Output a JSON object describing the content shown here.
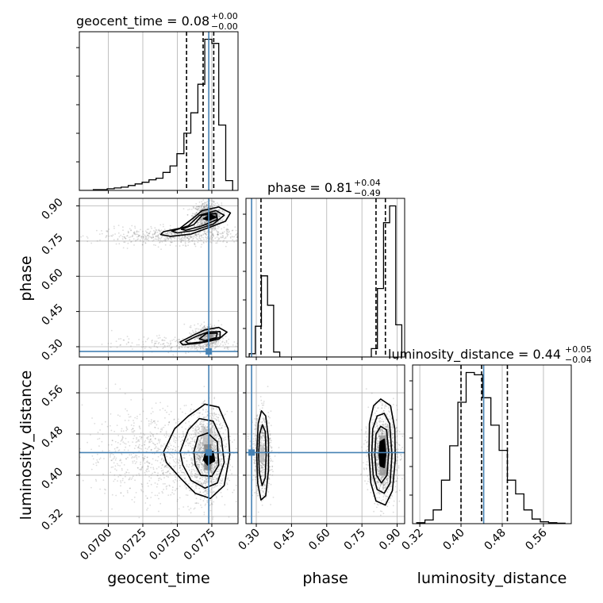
{
  "colors": {
    "truth": "#4682b4",
    "contour": "#000000",
    "grid": "#b0b0b0",
    "scatter": "#808080"
  },
  "chart_data": {
    "type": "corner",
    "parameters": [
      "geocent_time",
      "phase",
      "luminosity_distance"
    ],
    "axis_labels": [
      "geocent_time",
      "phase",
      "luminosity_distance"
    ],
    "truths": [
      0.07728,
      0.28,
      0.444
    ],
    "titles": [
      {
        "param": "geocent_time",
        "text": "geocent_time = 0.08",
        "sup": "+0.00",
        "sub": "−0.00"
      },
      {
        "param": "phase",
        "text": "phase = 0.81",
        "sup": "+0.04",
        "sub": "−0.49"
      },
      {
        "param": "luminosity_distance",
        "text": "luminosity_distance = 0.44",
        "sup": "+0.05",
        "sub": "−0.04"
      }
    ],
    "ranges": {
      "geocent_time": [
        0.0679,
        0.0794
      ],
      "phase": [
        0.256,
        0.932
      ],
      "luminosity_distance": [
        0.306,
        0.614
      ]
    },
    "ticks": {
      "geocent_time": [
        "0.0700",
        "0.0725",
        "0.0750",
        "0.0775"
      ],
      "phase": [
        "0.30",
        "0.45",
        "0.60",
        "0.75",
        "0.90"
      ],
      "luminosity_distance": [
        "0.32",
        "0.40",
        "0.48",
        "0.56"
      ]
    },
    "quantiles": {
      "geocent_time": [
        0.07567,
        0.07687,
        0.07764
      ],
      "phase": [
        0.32,
        0.81,
        0.85
      ],
      "luminosity_distance": [
        0.4,
        0.44,
        0.49
      ]
    },
    "histograms": {
      "geocent_time": {
        "edges": [
          0.0679,
          0.06841,
          0.06891,
          0.06942,
          0.06992,
          0.07043,
          0.07093,
          0.07144,
          0.07194,
          0.07245,
          0.07295,
          0.07346,
          0.07396,
          0.07447,
          0.07497,
          0.07548,
          0.07598,
          0.07649,
          0.07699,
          0.0775,
          0.078,
          0.07851,
          0.07901
        ],
        "counts": [
          0,
          0,
          1,
          1,
          2,
          3,
          4,
          6,
          8,
          10,
          13,
          15,
          22,
          30,
          45,
          70,
          95,
          130,
          185,
          180,
          80,
          12
        ]
      },
      "phase": {
        "edges": [
          0.27,
          0.296,
          0.322,
          0.348,
          0.374,
          0.4,
          0.426,
          0.452,
          0.478,
          0.504,
          0.53,
          0.556,
          0.582,
          0.608,
          0.634,
          0.66,
          0.686,
          0.712,
          0.738,
          0.764,
          0.79,
          0.816,
          0.842,
          0.868,
          0.894,
          0.92
        ],
        "counts": [
          12,
          110,
          290,
          185,
          18,
          0,
          0,
          0,
          0,
          0,
          0,
          0,
          0,
          0,
          0,
          0,
          0,
          0,
          0,
          0,
          30,
          245,
          480,
          540,
          115
        ]
      },
      "luminosity_distance": {
        "edges": [
          0.314,
          0.33,
          0.346,
          0.362,
          0.378,
          0.394,
          0.41,
          0.426,
          0.442,
          0.458,
          0.474,
          0.49,
          0.506,
          0.522,
          0.538,
          0.554,
          0.57,
          0.586,
          0.602
        ],
        "counts": [
          2,
          8,
          30,
          95,
          170,
          265,
          330,
          325,
          275,
          215,
          160,
          95,
          65,
          30,
          10,
          4,
          2,
          1
        ]
      }
    },
    "clusters": [
      {
        "x": "geocent_time",
        "y": "phase",
        "n": 900,
        "mx": 0.0772,
        "sx": 0.0005,
        "my": 0.855,
        "sy": 0.028
      },
      {
        "x": "geocent_time",
        "y": "phase",
        "n": 650,
        "mx": 0.0752,
        "sx": 0.003,
        "my": 0.772,
        "sy": 0.018
      },
      {
        "x": "geocent_time",
        "y": "phase",
        "n": 500,
        "mx": 0.0772,
        "sx": 0.0005,
        "my": 0.345,
        "sy": 0.024
      },
      {
        "x": "geocent_time",
        "y": "phase",
        "n": 250,
        "mx": 0.0752,
        "sx": 0.0025,
        "my": 0.312,
        "sy": 0.016
      },
      {
        "x": "geocent_time",
        "y": "luminosity_distance",
        "n": 1300,
        "mx": 0.0772,
        "sx": 0.0006,
        "my": 0.44,
        "sy": 0.04
      },
      {
        "x": "geocent_time",
        "y": "luminosity_distance",
        "n": 900,
        "mx": 0.074,
        "sx": 0.0028,
        "my": 0.44,
        "sy": 0.045
      },
      {
        "x": "phase",
        "y": "luminosity_distance",
        "n": 650,
        "mx": 0.325,
        "sx": 0.02,
        "my": 0.44,
        "sy": 0.04
      },
      {
        "x": "phase",
        "y": "luminosity_distance",
        "n": 1400,
        "mx": 0.84,
        "sx": 0.03,
        "my": 0.44,
        "sy": 0.04
      }
    ],
    "contours": [
      {
        "x": "geocent_time",
        "y": "phase",
        "level": "outer",
        "points": [
          [
            0.074,
            0.79
          ],
          [
            0.0752,
            0.805
          ],
          [
            0.0762,
            0.85
          ],
          [
            0.0768,
            0.88
          ],
          [
            0.078,
            0.895
          ],
          [
            0.07885,
            0.87
          ],
          [
            0.0785,
            0.835
          ],
          [
            0.0774,
            0.81
          ],
          [
            0.076,
            0.78
          ],
          [
            0.0745,
            0.77
          ],
          [
            0.0738,
            0.778
          ]
        ]
      },
      {
        "x": "geocent_time",
        "y": "phase",
        "level": "mid",
        "points": [
          [
            0.0746,
            0.792
          ],
          [
            0.0758,
            0.815
          ],
          [
            0.0766,
            0.86
          ],
          [
            0.0778,
            0.88
          ],
          [
            0.0784,
            0.86
          ],
          [
            0.0776,
            0.822
          ],
          [
            0.0762,
            0.795
          ],
          [
            0.075,
            0.785
          ]
        ]
      },
      {
        "x": "geocent_time",
        "y": "phase",
        "level": "inner",
        "points": [
          [
            0.0753,
            0.8
          ],
          [
            0.0762,
            0.82
          ],
          [
            0.0768,
            0.86
          ],
          [
            0.0778,
            0.868
          ],
          [
            0.0779,
            0.842
          ],
          [
            0.0768,
            0.815
          ],
          [
            0.0756,
            0.796
          ]
        ]
      },
      {
        "x": "geocent_time",
        "y": "phase",
        "level": "core",
        "points": [
          [
            0.0769,
            0.845
          ],
          [
            0.0774,
            0.862
          ],
          [
            0.0778,
            0.852
          ],
          [
            0.0773,
            0.838
          ]
        ]
      },
      {
        "x": "geocent_time",
        "y": "phase",
        "level": "outer",
        "points": [
          [
            0.0752,
            0.32
          ],
          [
            0.0762,
            0.35
          ],
          [
            0.077,
            0.372
          ],
          [
            0.078,
            0.382
          ],
          [
            0.0786,
            0.362
          ],
          [
            0.078,
            0.332
          ],
          [
            0.0766,
            0.315
          ],
          [
            0.0754,
            0.308
          ]
        ]
      },
      {
        "x": "geocent_time",
        "y": "phase",
        "level": "mid",
        "points": [
          [
            0.0756,
            0.322
          ],
          [
            0.0764,
            0.345
          ],
          [
            0.0772,
            0.362
          ],
          [
            0.0781,
            0.365
          ],
          [
            0.0781,
            0.34
          ],
          [
            0.0768,
            0.32
          ],
          [
            0.0758,
            0.314
          ]
        ]
      },
      {
        "x": "geocent_time",
        "y": "phase",
        "level": "inner",
        "points": [
          [
            0.0766,
            0.333
          ],
          [
            0.0771,
            0.356
          ],
          [
            0.0779,
            0.358
          ],
          [
            0.0778,
            0.338
          ],
          [
            0.077,
            0.326
          ]
        ]
      },
      {
        "x": "geocent_time",
        "y": "luminosity_distance",
        "level": "outer",
        "points": [
          [
            0.074,
            0.445
          ],
          [
            0.0748,
            0.49
          ],
          [
            0.0758,
            0.515
          ],
          [
            0.077,
            0.538
          ],
          [
            0.078,
            0.532
          ],
          [
            0.07868,
            0.49
          ],
          [
            0.0788,
            0.44
          ],
          [
            0.0784,
            0.38
          ],
          [
            0.0774,
            0.355
          ],
          [
            0.0763,
            0.365
          ],
          [
            0.0752,
            0.395
          ],
          [
            0.0742,
            0.425
          ]
        ]
      },
      {
        "x": "geocent_time",
        "y": "luminosity_distance",
        "level": "mid",
        "points": [
          [
            0.0752,
            0.445
          ],
          [
            0.0758,
            0.488
          ],
          [
            0.0766,
            0.51
          ],
          [
            0.0776,
            0.505
          ],
          [
            0.0782,
            0.47
          ],
          [
            0.0784,
            0.425
          ],
          [
            0.0779,
            0.385
          ],
          [
            0.077,
            0.375
          ],
          [
            0.076,
            0.39
          ],
          [
            0.0754,
            0.42
          ]
        ]
      },
      {
        "x": "geocent_time",
        "y": "luminosity_distance",
        "level": "inner",
        "points": [
          [
            0.0762,
            0.445
          ],
          [
            0.0765,
            0.475
          ],
          [
            0.0772,
            0.482
          ],
          [
            0.0779,
            0.465
          ],
          [
            0.078,
            0.42
          ],
          [
            0.0775,
            0.398
          ],
          [
            0.0767,
            0.4
          ],
          [
            0.0763,
            0.42
          ]
        ]
      },
      {
        "x": "geocent_time",
        "y": "luminosity_distance",
        "level": "core",
        "points": [
          [
            0.0769,
            0.43
          ],
          [
            0.0771,
            0.446
          ],
          [
            0.0776,
            0.446
          ],
          [
            0.0777,
            0.428
          ],
          [
            0.0772,
            0.42
          ]
        ]
      },
      {
        "x": "phase",
        "y": "luminosity_distance",
        "level": "outer",
        "points": [
          [
            0.302,
            0.44
          ],
          [
            0.308,
            0.5
          ],
          [
            0.322,
            0.525
          ],
          [
            0.34,
            0.515
          ],
          [
            0.352,
            0.47
          ],
          [
            0.352,
            0.41
          ],
          [
            0.34,
            0.36
          ],
          [
            0.32,
            0.352
          ],
          [
            0.306,
            0.385
          ]
        ]
      },
      {
        "x": "phase",
        "y": "luminosity_distance",
        "level": "mid",
        "points": [
          [
            0.31,
            0.44
          ],
          [
            0.314,
            0.48
          ],
          [
            0.326,
            0.498
          ],
          [
            0.338,
            0.485
          ],
          [
            0.342,
            0.44
          ],
          [
            0.338,
            0.395
          ],
          [
            0.325,
            0.38
          ],
          [
            0.313,
            0.405
          ]
        ]
      },
      {
        "x": "phase",
        "y": "luminosity_distance",
        "level": "outer",
        "points": [
          [
            0.78,
            0.44
          ],
          [
            0.782,
            0.5
          ],
          [
            0.8,
            0.535
          ],
          [
            0.83,
            0.548
          ],
          [
            0.872,
            0.535
          ],
          [
            0.89,
            0.49
          ],
          [
            0.892,
            0.43
          ],
          [
            0.88,
            0.37
          ],
          [
            0.85,
            0.342
          ],
          [
            0.81,
            0.35
          ],
          [
            0.788,
            0.385
          ]
        ]
      },
      {
        "x": "phase",
        "y": "luminosity_distance",
        "level": "mid",
        "points": [
          [
            0.792,
            0.44
          ],
          [
            0.796,
            0.49
          ],
          [
            0.815,
            0.515
          ],
          [
            0.845,
            0.52
          ],
          [
            0.868,
            0.5
          ],
          [
            0.878,
            0.44
          ],
          [
            0.87,
            0.385
          ],
          [
            0.845,
            0.365
          ],
          [
            0.815,
            0.372
          ],
          [
            0.798,
            0.4
          ]
        ]
      },
      {
        "x": "phase",
        "y": "luminosity_distance",
        "level": "inner",
        "points": [
          [
            0.805,
            0.44
          ],
          [
            0.81,
            0.48
          ],
          [
            0.83,
            0.495
          ],
          [
            0.855,
            0.488
          ],
          [
            0.864,
            0.445
          ],
          [
            0.857,
            0.4
          ],
          [
            0.833,
            0.385
          ],
          [
            0.812,
            0.4
          ]
        ]
      },
      {
        "x": "phase",
        "y": "luminosity_distance",
        "level": "core",
        "points": [
          [
            0.823,
            0.44
          ],
          [
            0.828,
            0.465
          ],
          [
            0.845,
            0.47
          ],
          [
            0.852,
            0.44
          ],
          [
            0.845,
            0.415
          ],
          [
            0.828,
            0.418
          ]
        ]
      }
    ],
    "density_cells": [
      {
        "x": "geocent_time",
        "y": "phase",
        "cx": 0.07735,
        "cy": 0.858,
        "w": 0.0004,
        "h": 0.025,
        "shade": 0.95
      },
      {
        "x": "geocent_time",
        "y": "phase",
        "cx": 0.07775,
        "cy": 0.858,
        "w": 0.0004,
        "h": 0.025,
        "shade": 0.55
      },
      {
        "x": "geocent_time",
        "y": "phase",
        "cx": 0.07735,
        "cy": 0.345,
        "w": 0.0004,
        "h": 0.022,
        "shade": 0.45
      },
      {
        "x": "geocent_time",
        "y": "luminosity_distance",
        "cx": 0.0772,
        "cy": 0.434,
        "w": 0.0005,
        "h": 0.014,
        "shade": 0.95
      },
      {
        "x": "geocent_time",
        "y": "luminosity_distance",
        "cx": 0.0772,
        "cy": 0.452,
        "w": 0.0005,
        "h": 0.016,
        "shade": 0.5
      },
      {
        "x": "geocent_time",
        "y": "luminosity_distance",
        "cx": 0.0772,
        "cy": 0.418,
        "w": 0.0005,
        "h": 0.016,
        "shade": 0.5
      },
      {
        "x": "geocent_time",
        "y": "luminosity_distance",
        "cx": 0.0772,
        "cy": 0.475,
        "w": 0.0007,
        "h": 0.03,
        "shade": 0.25
      },
      {
        "x": "phase",
        "y": "luminosity_distance",
        "cx": 0.84,
        "cy": 0.438,
        "w": 0.022,
        "h": 0.016,
        "shade": 0.95
      },
      {
        "x": "phase",
        "y": "luminosity_distance",
        "cx": 0.84,
        "cy": 0.462,
        "w": 0.03,
        "h": 0.03,
        "shade": 0.4
      },
      {
        "x": "phase",
        "y": "luminosity_distance",
        "cx": 0.84,
        "cy": 0.415,
        "w": 0.03,
        "h": 0.03,
        "shade": 0.4
      },
      {
        "x": "phase",
        "y": "luminosity_distance",
        "cx": 0.325,
        "cy": 0.44,
        "w": 0.018,
        "h": 0.03,
        "shade": 0.25
      }
    ]
  }
}
